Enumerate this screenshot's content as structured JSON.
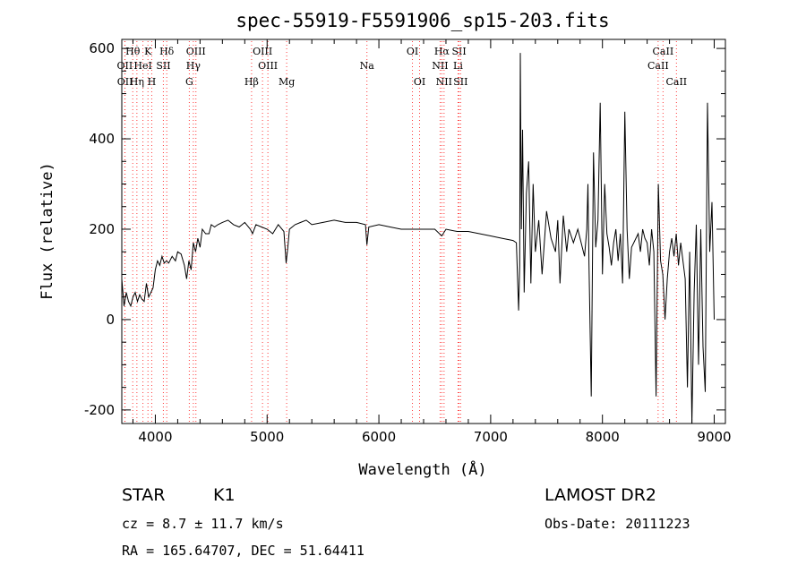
{
  "chart_data": {
    "type": "line",
    "title": "spec-55919-F5591906_sp15-203.fits",
    "xlabel": "Wavelength (Å)",
    "ylabel": "Flux (relative)",
    "xlim": [
      3700,
      9100
    ],
    "ylim": [
      -230,
      620
    ],
    "x_ticks": [
      4000,
      5000,
      6000,
      7000,
      8000,
      9000
    ],
    "y_ticks": [
      -200,
      0,
      200,
      400,
      600
    ],
    "grid": false,
    "line_color": "#000000",
    "marker_color": "#ff3b3b",
    "spectral_lines": [
      {
        "label": "Hθ",
        "wavelength": 3798,
        "row": 0
      },
      {
        "label": "K",
        "wavelength": 3934,
        "row": 0
      },
      {
        "label": "Hδ",
        "wavelength": 4102,
        "row": 0
      },
      {
        "label": "OIII",
        "wavelength": 4363,
        "row": 0
      },
      {
        "label": "OIII",
        "wavelength": 4959,
        "row": 0
      },
      {
        "label": "OI",
        "wavelength": 6300,
        "row": 0
      },
      {
        "label": "Hα",
        "wavelength": 6563,
        "row": 0
      },
      {
        "label": "SII",
        "wavelength": 6717,
        "row": 0
      },
      {
        "label": "CaII",
        "wavelength": 8542,
        "row": 0
      },
      {
        "label": "OII",
        "wavelength": 3727,
        "row": 1
      },
      {
        "label": "HeI",
        "wavelength": 3889,
        "row": 1
      },
      {
        "label": "SII",
        "wavelength": 4072,
        "row": 1
      },
      {
        "label": "Hγ",
        "wavelength": 4340,
        "row": 1
      },
      {
        "label": "OIII",
        "wavelength": 5007,
        "row": 1
      },
      {
        "label": "Na",
        "wavelength": 5893,
        "row": 1
      },
      {
        "label": "NII",
        "wavelength": 6548,
        "row": 1
      },
      {
        "label": "Li",
        "wavelength": 6708,
        "row": 1
      },
      {
        "label": "CaII",
        "wavelength": 8498,
        "row": 1
      },
      {
        "label": "OII",
        "wavelength": 3729,
        "row": 2
      },
      {
        "label": "Hη",
        "wavelength": 3835,
        "row": 2
      },
      {
        "label": "H",
        "wavelength": 3968,
        "row": 2
      },
      {
        "label": "G",
        "wavelength": 4304,
        "row": 2
      },
      {
        "label": "Hβ",
        "wavelength": 4861,
        "row": 2
      },
      {
        "label": "Mg",
        "wavelength": 5175,
        "row": 2
      },
      {
        "label": "OI",
        "wavelength": 6364,
        "row": 2
      },
      {
        "label": "NII",
        "wavelength": 6583,
        "row": 2
      },
      {
        "label": "SII",
        "wavelength": 6731,
        "row": 2
      },
      {
        "label": "CaII",
        "wavelength": 8662,
        "row": 2
      }
    ],
    "series": [
      {
        "x": [
          3700,
          3720,
          3740,
          3760,
          3780,
          3800,
          3820,
          3840,
          3860,
          3880,
          3900,
          3920,
          3940,
          3960,
          3980,
          4000,
          4020,
          4040,
          4060,
          4080,
          4100,
          4120,
          4150,
          4180,
          4200,
          4230,
          4260,
          4280,
          4300,
          4320,
          4340,
          4360,
          4380,
          4400,
          4420,
          4450,
          4480,
          4500,
          4530,
          4560,
          4600,
          4650,
          4700,
          4750,
          4800,
          4850,
          4870,
          4900,
          4950,
          5000,
          5050,
          5100,
          5150,
          5170,
          5185,
          5200,
          5250,
          5300,
          5350,
          5400,
          5500,
          5600,
          5700,
          5800,
          5880,
          5893,
          5910,
          6000,
          6100,
          6200,
          6300,
          6400,
          6500,
          6563,
          6600,
          6700,
          6800,
          6900,
          7000,
          7100,
          7200,
          7230,
          7250,
          7260,
          7265,
          7275,
          7285,
          7300,
          7320,
          7340,
          7360,
          7380,
          7400,
          7430,
          7460,
          7500,
          7540,
          7580,
          7600,
          7620,
          7650,
          7680,
          7700,
          7740,
          7780,
          7800,
          7820,
          7840,
          7860,
          7870,
          7880,
          7900,
          7920,
          7940,
          7960,
          7980,
          8000,
          8020,
          8040,
          8060,
          8080,
          8100,
          8120,
          8140,
          8160,
          8180,
          8200,
          8220,
          8240,
          8260,
          8280,
          8300,
          8320,
          8340,
          8360,
          8380,
          8400,
          8420,
          8440,
          8460,
          8480,
          8500,
          8520,
          8540,
          8560,
          8580,
          8600,
          8620,
          8640,
          8660,
          8680,
          8700,
          8720,
          8740,
          8760,
          8780,
          8800,
          8820,
          8840,
          8860,
          8880,
          8900,
          8920,
          8940,
          8960,
          8980,
          9000
        ],
        "y": [
          90,
          30,
          60,
          40,
          30,
          50,
          60,
          40,
          55,
          45,
          40,
          80,
          50,
          60,
          70,
          110,
          130,
          120,
          140,
          125,
          130,
          125,
          140,
          130,
          150,
          145,
          120,
          90,
          130,
          110,
          170,
          150,
          180,
          160,
          200,
          190,
          190,
          210,
          205,
          210,
          215,
          220,
          210,
          205,
          215,
          200,
          190,
          210,
          205,
          200,
          190,
          210,
          195,
          125,
          160,
          200,
          210,
          215,
          220,
          210,
          215,
          220,
          215,
          215,
          210,
          165,
          205,
          210,
          205,
          200,
          200,
          200,
          200,
          185,
          200,
          195,
          195,
          190,
          185,
          180,
          175,
          170,
          20,
          120,
          590,
          200,
          420,
          60,
          280,
          350,
          80,
          300,
          150,
          220,
          100,
          240,
          180,
          150,
          220,
          80,
          230,
          150,
          200,
          170,
          200,
          180,
          160,
          140,
          200,
          300,
          120,
          -170,
          370,
          160,
          220,
          480,
          100,
          300,
          190,
          160,
          120,
          170,
          200,
          130,
          190,
          80,
          460,
          200,
          90,
          160,
          170,
          180,
          190,
          150,
          200,
          180,
          170,
          120,
          200,
          150,
          -170,
          300,
          130,
          100,
          0,
          90,
          150,
          180,
          140,
          190,
          120,
          170,
          130,
          90,
          -150,
          150,
          -240,
          60,
          210,
          -100,
          200,
          -60,
          -160,
          480,
          150,
          260,
          0
        ]
      }
    ]
  },
  "footer": {
    "object_type": "STAR",
    "subclass": "K1",
    "survey": "LAMOST DR2",
    "velocity": "cz = 8.7 ± 11.7 km/s",
    "obs_date": "Obs-Date: 20111223",
    "coords": "RA = 165.64707, DEC =  51.64411"
  }
}
